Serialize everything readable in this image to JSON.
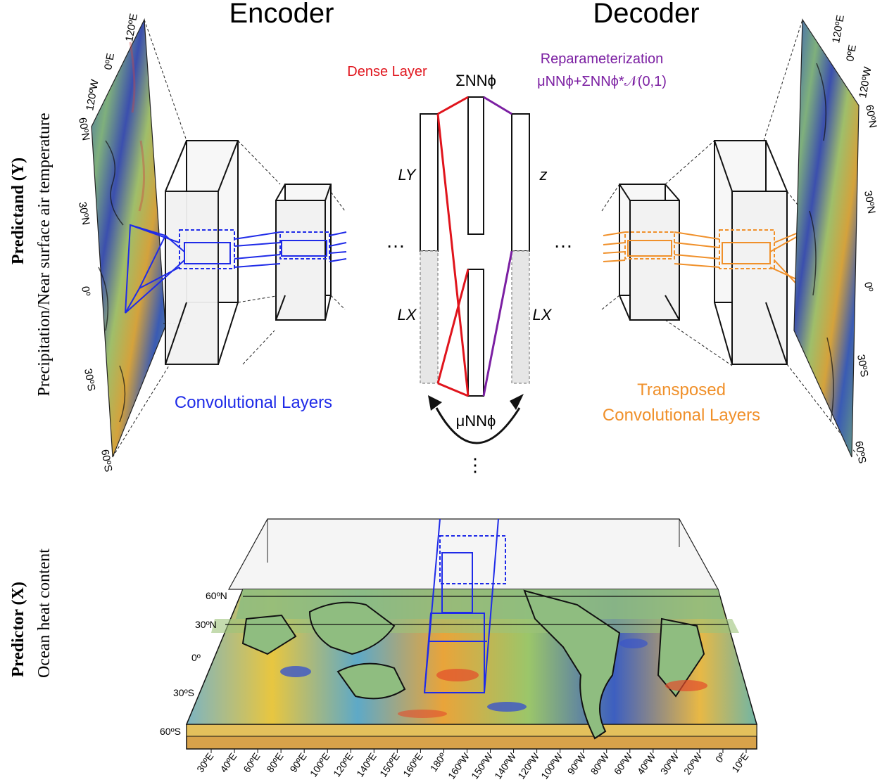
{
  "headers": {
    "encoder": "Encoder",
    "decoder": "Decoder"
  },
  "side_labels": {
    "predictand_bold": "Predictand (Y)",
    "predictand_sub": "Precipitation/Near surface air temperature",
    "predictor_bold": "Predictor (X)",
    "predictor_sub": "Ocean heat content"
  },
  "network": {
    "dense_layer": "Dense Layer",
    "reparam_title": "Reparameterization",
    "reparam_formula": "μNNϕ+ΣNNϕ*𝒩(0,1)",
    "sigma": "ΣNNϕ",
    "mu": "μNNϕ",
    "ly": "LY",
    "lx_left": "LX",
    "lx_right": "LX",
    "z": "z",
    "ellipsis": "…",
    "vdots": "⋮"
  },
  "legends": {
    "conv": "Convolutional Layers",
    "tconv_1": "Transposed",
    "tconv_2": "Convolutional Layers"
  },
  "left_map": {
    "lat_ticks": [
      "60ºN",
      "30ºN",
      "0º",
      "30ºS",
      "60ºS"
    ],
    "lon_ticks": [
      "120ºW",
      "0ºE",
      "120ºE"
    ]
  },
  "right_map": {
    "lat_ticks": [
      "60ºN",
      "30ºN",
      "0º",
      "30ºS",
      "60ºS"
    ],
    "lon_ticks": [
      "120ºW",
      "0ºE",
      "120ºE"
    ]
  },
  "bottom_map": {
    "lat_ticks": [
      "60ºN",
      "30ºN",
      "0º",
      "30ºS",
      "60ºS"
    ],
    "lon_ticks": [
      "30ºE",
      "40ºE",
      "60ºE",
      "80ºE",
      "90ºE",
      "100ºE",
      "120ºE",
      "140ºE",
      "150ºE",
      "160ºE",
      "180º",
      "160ºW",
      "150ºW",
      "140ºW",
      "120ºW",
      "100ºW",
      "90ºW",
      "80ºW",
      "60ºW",
      "40ºW",
      "30ºW",
      "20ºW",
      "0º",
      "10ºE"
    ]
  },
  "colors": {
    "encoder": "#1f2be8",
    "decoder": "#f0902a",
    "dense": "#e0141c",
    "reparam": "#7b1fa2",
    "map_green": "#8fbd80"
  }
}
